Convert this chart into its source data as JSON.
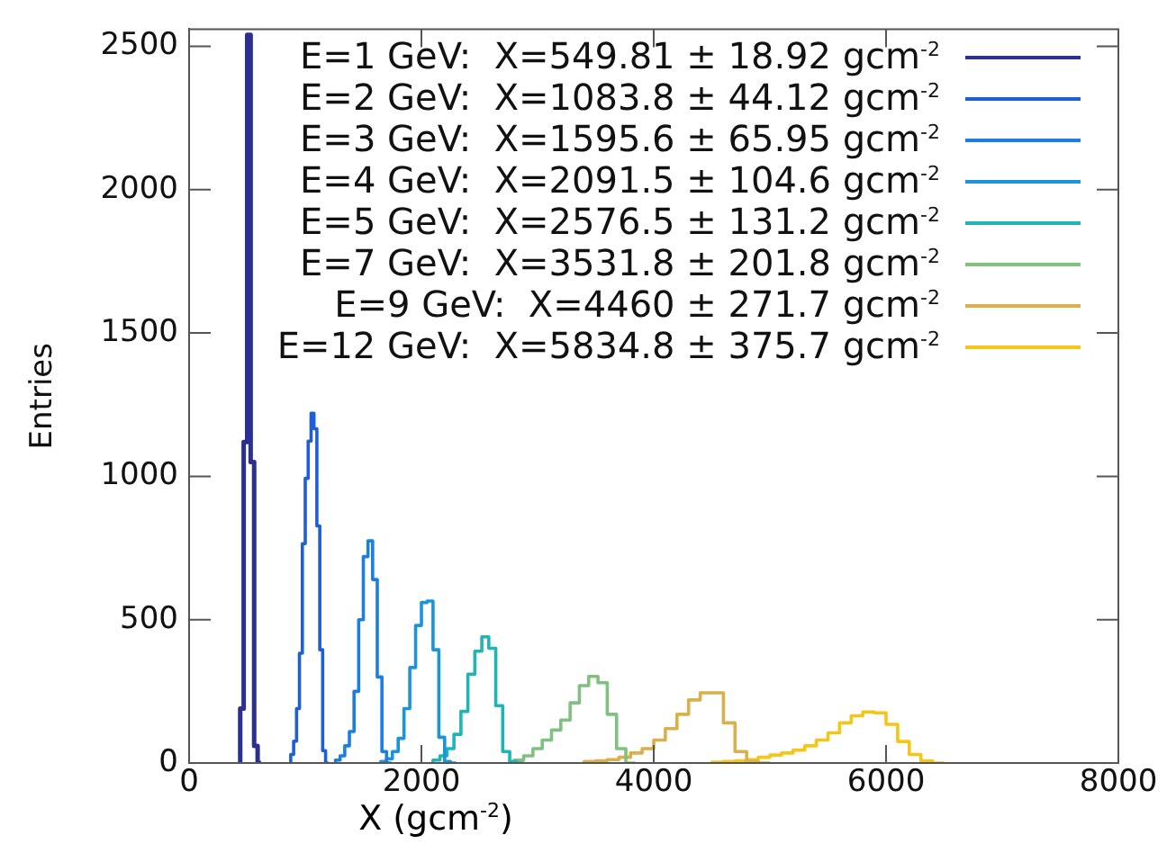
{
  "chart_data": {
    "type": "step",
    "xlabel": "X (gcm$^{-2}$)",
    "ylabel": "Entries",
    "xlim": [
      0,
      8000
    ],
    "xticks": [
      0,
      2000,
      4000,
      6000,
      8000
    ],
    "ylim": [
      0,
      2560
    ],
    "yticks": [
      0,
      500,
      1000,
      1500,
      2000,
      2500
    ],
    "legend": "top right",
    "grid": false,
    "series": [
      {
        "name": "E=1 GeV:  X=549.81 ± 18.92 gcm$^{-2}$",
        "color": "#2b2f8f",
        "x": [
          440,
          470,
          500,
          530,
          560,
          590,
          620
        ],
        "values": [
          0,
          190,
          1120,
          2540,
          1050,
          60,
          0
        ]
      },
      {
        "name": "E=2 GeV:  X=1083.8 ± 44.12 gcm$^{-2}$",
        "color": "#1f5fd6",
        "x": [
          875,
          900,
          925,
          950,
          975,
          1000,
          1025,
          1050,
          1075,
          1100,
          1125,
          1150,
          1175,
          1200
        ],
        "values": [
          0,
          30,
          76,
          190,
          383,
          765,
          993,
          1123,
          1220,
          1166,
          827,
          395,
          43,
          0
        ]
      },
      {
        "name": "E=3 GeV:  X=1595.6 ± 65.95 gcm$^{-2}$",
        "color": "#1a7fe0",
        "x": [
          1260,
          1300,
          1340,
          1380,
          1420,
          1460,
          1500,
          1540,
          1580,
          1620,
          1660,
          1700,
          1740
        ],
        "values": [
          0,
          10,
          25,
          60,
          110,
          250,
          500,
          720,
          775,
          640,
          300,
          40,
          0
        ]
      },
      {
        "name": "E=4 GeV:  X=2091.5 ± 104.6 gcm$^{-2}$",
        "color": "#1a95d8",
        "x": [
          1650,
          1700,
          1750,
          1800,
          1850,
          1900,
          1950,
          2000,
          2050,
          2100,
          2150,
          2200,
          2250,
          2300
        ],
        "values": [
          0,
          5,
          15,
          40,
          86,
          190,
          333,
          480,
          560,
          565,
          395,
          90,
          5,
          0
        ]
      },
      {
        "name": "E=5 GeV:  X=2576.5 ± 131.2 gcm$^{-2}$",
        "color": "#1fb5b5",
        "x": [
          2100,
          2160,
          2220,
          2280,
          2340,
          2400,
          2460,
          2520,
          2580,
          2640,
          2700,
          2760,
          2820,
          2880
        ],
        "values": [
          0,
          10,
          25,
          50,
          100,
          180,
          310,
          390,
          440,
          400,
          200,
          40,
          5,
          0
        ]
      },
      {
        "name": "E=7 GeV:  X=3531.8 ± 201.8 gcm$^{-2}$",
        "color": "#80c080",
        "x": [
          2800,
          2880,
          2960,
          3040,
          3120,
          3200,
          3280,
          3360,
          3440,
          3520,
          3600,
          3680,
          3760,
          3840
        ],
        "values": [
          0,
          10,
          25,
          50,
          80,
          115,
          150,
          210,
          270,
          302,
          280,
          170,
          50,
          0
        ]
      },
      {
        "name": "E=9 GeV:  X=4460 ± 271.7 gcm$^{-2}$",
        "color": "#d9b04a",
        "x": [
          3400,
          3500,
          3600,
          3700,
          3800,
          3900,
          4000,
          4100,
          4200,
          4300,
          4400,
          4500,
          4600,
          4700,
          4800,
          4900,
          5000
        ],
        "values": [
          0,
          5,
          8,
          12,
          20,
          35,
          50,
          80,
          120,
          170,
          220,
          245,
          245,
          140,
          40,
          5,
          0
        ]
      },
      {
        "name": "E=12 GeV:  X=5834.8 ± 375.7 gcm$^{-2}$",
        "color": "#f5c518",
        "x": [
          4500,
          4600,
          4700,
          4800,
          4900,
          5000,
          5100,
          5200,
          5300,
          5400,
          5500,
          5600,
          5700,
          5800,
          5900,
          6000,
          6100,
          6200,
          6300,
          6400,
          6500
        ],
        "values": [
          0,
          3,
          5,
          8,
          12,
          20,
          28,
          35,
          45,
          60,
          80,
          105,
          140,
          165,
          178,
          175,
          135,
          75,
          30,
          8,
          0
        ]
      }
    ]
  }
}
